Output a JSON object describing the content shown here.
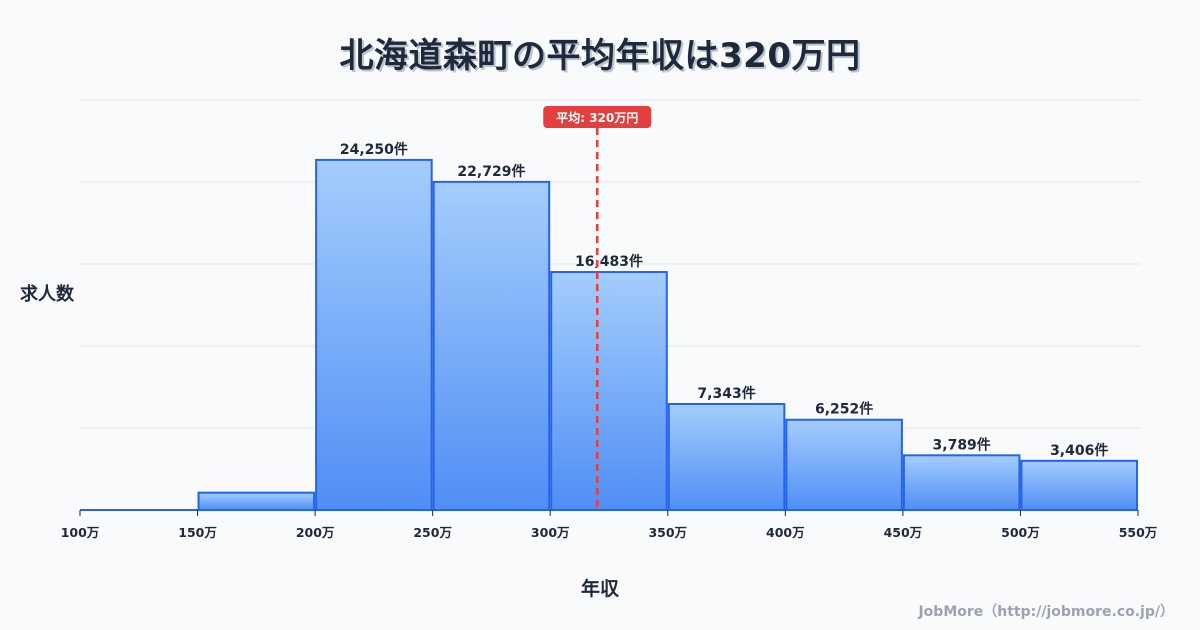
{
  "title": "北海道森町の平均年収は320万円",
  "ylabel": "求人数",
  "xlabel": "年収",
  "footer": "JobMore（http://jobmore.co.jp/）",
  "colors": {
    "bar_top": "#a5cdfc",
    "bar_bottom": "#4f8ef5",
    "bar_stroke": "#2563eb",
    "mean_line": "#e53e3e",
    "grid": "#e2e8f0",
    "text": "#1e293b"
  },
  "chart_data": {
    "type": "bar",
    "title": "北海道森町の平均年収は320万円",
    "xlabel": "年収",
    "ylabel": "求人数",
    "bins": [
      {
        "from": 100,
        "to": 150,
        "value": 0,
        "label": ""
      },
      {
        "from": 150,
        "to": 200,
        "value": 1200,
        "label": ""
      },
      {
        "from": 200,
        "to": 250,
        "value": 24250,
        "label": "24,250件"
      },
      {
        "from": 250,
        "to": 300,
        "value": 22729,
        "label": "22,729件"
      },
      {
        "from": 300,
        "to": 350,
        "value": 16483,
        "label": "16,483件"
      },
      {
        "from": 350,
        "to": 400,
        "value": 7343,
        "label": "7,343件"
      },
      {
        "from": 400,
        "to": 450,
        "value": 6252,
        "label": "6,252件"
      },
      {
        "from": 450,
        "to": 500,
        "value": 3789,
        "label": "3,789件"
      },
      {
        "from": 500,
        "to": 550,
        "value": 3406,
        "label": "3,406件"
      }
    ],
    "x_ticks": [
      "100万",
      "150万",
      "200万",
      "250万",
      "300万",
      "350万",
      "400万",
      "450万",
      "500万",
      "550万"
    ],
    "x_range": [
      100,
      550
    ],
    "ylim": [
      0,
      28400
    ],
    "grid_lines": 5,
    "grid": true,
    "legend": false,
    "mean": {
      "value": 320,
      "label": "平均: 320万円"
    }
  }
}
